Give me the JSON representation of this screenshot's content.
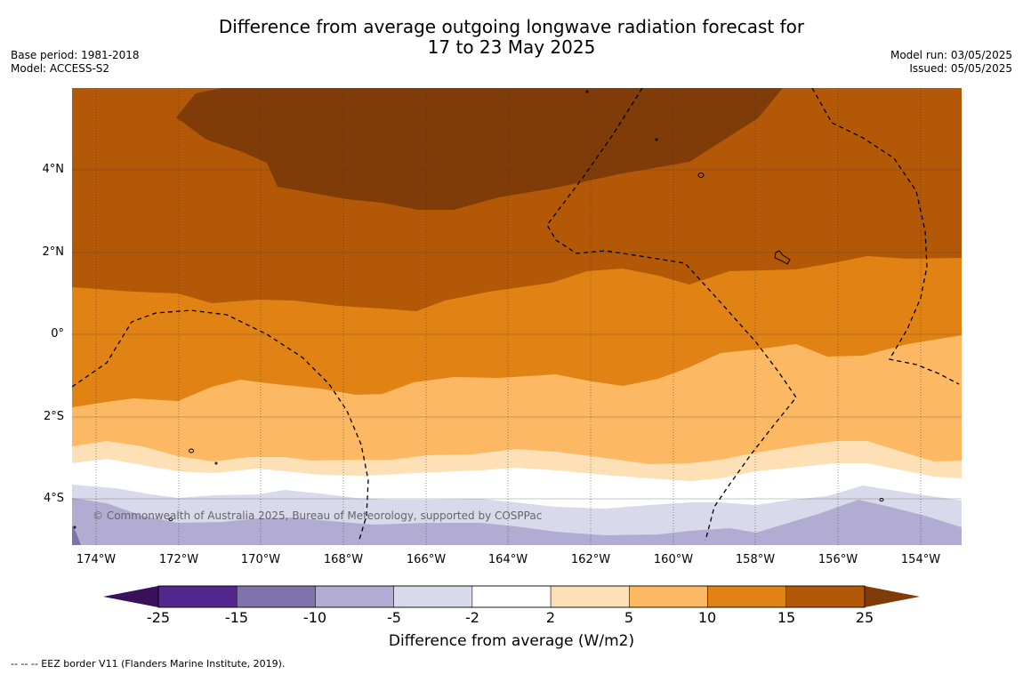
{
  "title_line1": "Difference from average outgoing longwave radiation forecast for",
  "title_line2": "17 to 23 May 2025",
  "meta_left": {
    "base_period": "Base period: 1981-2018",
    "model": "Model: ACCESS-S2"
  },
  "meta_right": {
    "model_run": "Model run: 03/05/2025",
    "issued": "Issued: 05/05/2025"
  },
  "credit": "© Commonwealth of Australia 2025, Bureau of Meteorology, supported by COSPPac",
  "lat_labels": [
    "4°N",
    "2°N",
    "0°",
    "2°S",
    "4°S"
  ],
  "lon_labels": [
    "174°W",
    "172°W",
    "170°W",
    "168°W",
    "166°W",
    "164°W",
    "162°W",
    "160°W",
    "158°W",
    "156°W",
    "154°W"
  ],
  "colorbar": {
    "title": "Difference from average (W/m2)",
    "ticks": [
      "-25",
      "-15",
      "-10",
      "-5",
      "-2",
      "2",
      "5",
      "10",
      "15",
      "25"
    ],
    "colors": [
      "#3b0f5a",
      "#54278f",
      "#8073ac",
      "#b2abd2",
      "#d8daeb",
      "#ffffff",
      "#fee0b6",
      "#fdb863",
      "#e08214",
      "#b35806",
      "#7f3b08"
    ]
  },
  "footnote": "-- -- -- EEZ border V11 (Flanders Marine Institute, 2019)."
}
